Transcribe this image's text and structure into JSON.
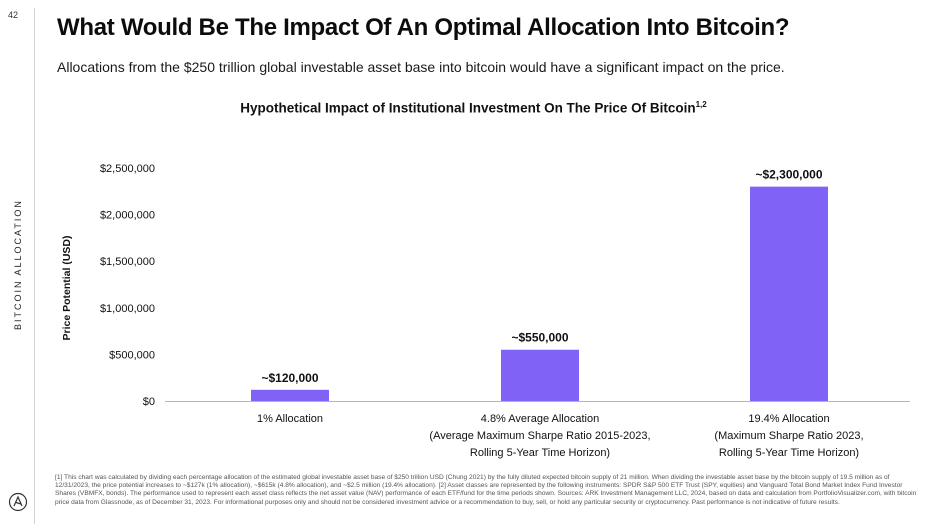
{
  "page_number": "42",
  "side_label": "BITCOIN ALLOCATION",
  "title": "What Would Be The Impact Of An Optimal Allocation Into Bitcoin?",
  "subtitle": "Allocations from the $250 trillion global investable asset base into bitcoin would have a significant impact on the price.",
  "chart_title": "Hypothetical Impact of Institutional Investment On The Price Of Bitcoin",
  "chart_title_sup": "1,2",
  "colors": {
    "bar": "#8162f7",
    "axis": "#b5b5b5",
    "text": "#111111"
  },
  "chart_data": {
    "type": "bar",
    "ylabel": "Price Potential (USD)",
    "ylim": [
      0,
      2500000
    ],
    "yticks": [
      0,
      500000,
      1000000,
      1500000,
      2000000,
      2500000
    ],
    "ytick_labels": [
      "$0",
      "$500,000",
      "$1,000,000",
      "$1,500,000",
      "$2,000,000",
      "$2,500,000"
    ],
    "grid": false,
    "categories": [
      [
        "1% Allocation"
      ],
      [
        "4.8% Average Allocation",
        "(Average Maximum Sharpe Ratio 2015-2023,",
        "Rolling 5-Year Time Horizon)"
      ],
      [
        "19.4% Allocation",
        "(Maximum Sharpe Ratio 2023,",
        "Rolling 5-Year Time Horizon)"
      ]
    ],
    "values": [
      120000,
      550000,
      2300000
    ],
    "data_labels": [
      "~$120,000",
      "~$550,000",
      "~$2,300,000"
    ]
  },
  "footnote": "[1] This chart was calculated by dividing each percentage allocation of the estimated global investable asset base of $250 trillion USD (Chung 2021) by the fully diluted expected bitcoin supply of 21 million. When dividing the investable asset base by the bitcoin supply of 19.5 million as of 12/31/2023, the price potential increases to ~$127k (1% allocation), ~$615k (4.8% allocation), and ~$2.5 million (19.4% allocation). [2] Asset classes are represented by the following instruments: SPDR S&P 500 ETF Trust (SPY, equities) and Vanguard Total Bond Market Index Fund Investor Shares (VBMFX, bonds). The performance used to represent each asset class reflects the net asset value (NAV) performance of each ETF/fund for the time periods shown. Sources: ARK Investment Management LLC, 2024, based on data and calculation from PortfolioVisualizer.com, with bitcoin price data from Glassnode, as of December 31, 2023. For informational purposes only and should not be considered investment advice or a recommendation to buy, sell, or hold any particular security or cryptocurrency. Past performance is not indicative of future results."
}
